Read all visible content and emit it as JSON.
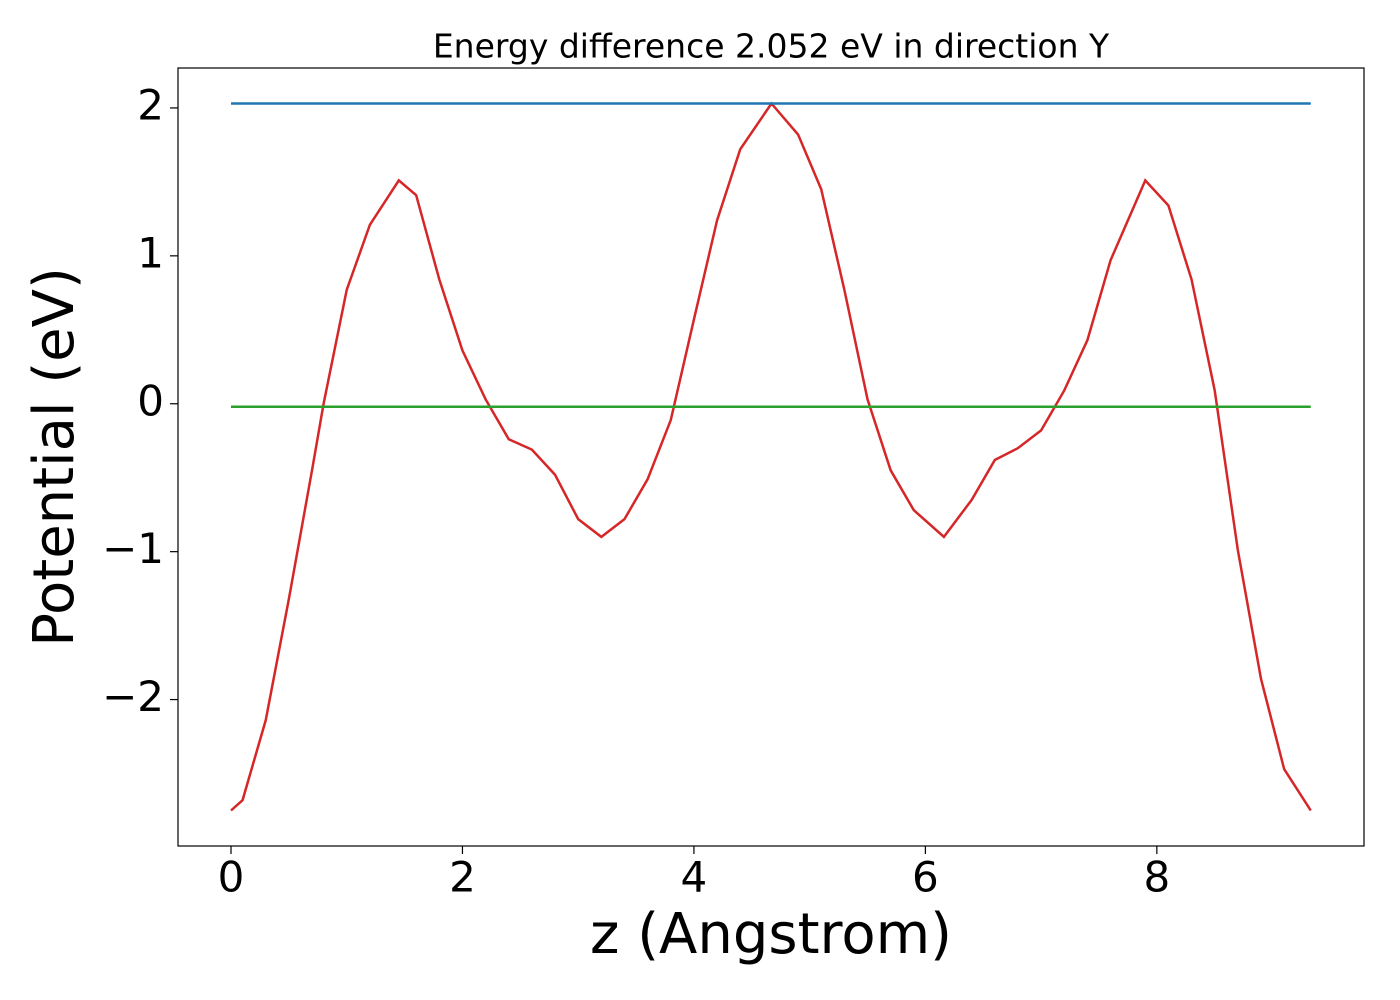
{
  "chart_data": {
    "type": "line",
    "title": "Energy difference 2.052 eV in direction Y",
    "xlabel": "z (Angstrom)",
    "ylabel": "Potential (eV)",
    "xlim": [
      -0.458,
      9.79
    ],
    "ylim": [
      -2.99,
      2.27
    ],
    "xticks": [
      0,
      2,
      4,
      6,
      8
    ],
    "yticks": [
      -2,
      -1,
      0,
      1,
      2
    ],
    "series": [
      {
        "color": "#d62728",
        "x": [
          0,
          0.1,
          0.3,
          0.5,
          0.7,
          0.8,
          1.0,
          1.2,
          1.45,
          1.6,
          1.8,
          2.0,
          2.2,
          2.4,
          2.6,
          2.8,
          3.0,
          3.2,
          3.4,
          3.6,
          3.8,
          4.0,
          4.2,
          4.4,
          4.67,
          4.9,
          5.1,
          5.3,
          5.5,
          5.7,
          5.9,
          6.16,
          6.4,
          6.6,
          6.8,
          7.0,
          7.2,
          7.4,
          7.6,
          7.9,
          8.1,
          8.3,
          8.5,
          8.7,
          8.9,
          9.1,
          9.33
        ],
        "values": [
          -2.75,
          -2.68,
          -2.14,
          -1.32,
          -0.45,
          0,
          0.77,
          1.21,
          1.51,
          1.41,
          0.84,
          0.36,
          0.03,
          -0.24,
          -0.31,
          -0.48,
          -0.78,
          -0.9,
          -0.78,
          -0.51,
          -0.11,
          0.57,
          1.24,
          1.72,
          2.03,
          1.82,
          1.45,
          0.77,
          0.03,
          -0.45,
          -0.72,
          -0.9,
          -0.65,
          -0.38,
          -0.3,
          -0.18,
          0.09,
          0.43,
          0.97,
          1.51,
          1.34,
          0.84,
          0.09,
          -0.99,
          -1.86,
          -2.47,
          -2.75
        ]
      },
      {
        "color": "#1f77b4",
        "x": [
          0,
          9.33
        ],
        "values": [
          2.03,
          2.03
        ]
      },
      {
        "color": "#2ca02c",
        "x": [
          0,
          9.33
        ],
        "values": [
          -0.02,
          -0.02
        ]
      }
    ]
  }
}
